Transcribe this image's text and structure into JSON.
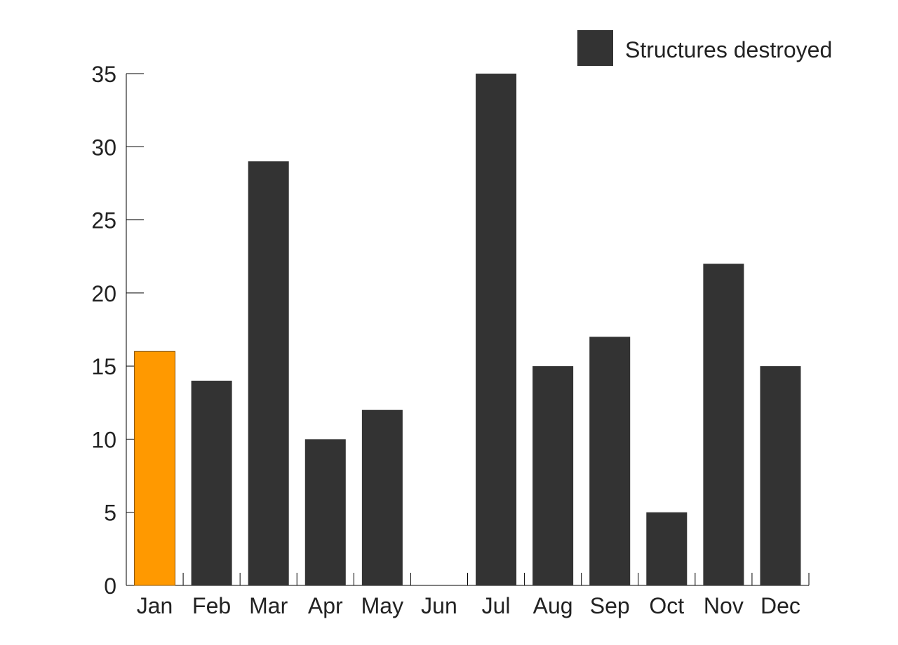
{
  "chart_data": {
    "type": "bar",
    "categories": [
      "Jan",
      "Feb",
      "Mar",
      "Apr",
      "May",
      "Jun",
      "Jul",
      "Aug",
      "Sep",
      "Oct",
      "Nov",
      "Dec"
    ],
    "series": [
      {
        "name": "Structures destroyed",
        "values": [
          16,
          14,
          29,
          10,
          12,
          0,
          35,
          15,
          17,
          5,
          22,
          15
        ],
        "color": "#333333"
      }
    ],
    "highlight": {
      "category": "Jan",
      "color": "#FF9900"
    },
    "title": "",
    "xlabel": "",
    "ylabel": "",
    "ylim": [
      0,
      35
    ],
    "yticks": [
      0,
      5,
      10,
      15,
      20,
      25,
      30,
      35
    ],
    "grid": false,
    "legend_position": "top-right"
  }
}
